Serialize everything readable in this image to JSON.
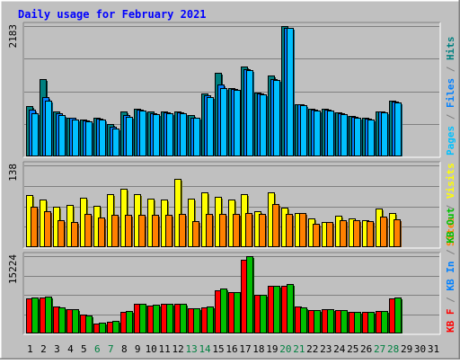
{
  "chart_data": {
    "type": "bar",
    "title": "Daily usage for February 2021",
    "categories": [
      "1",
      "2",
      "3",
      "4",
      "5",
      "6",
      "7",
      "8",
      "9",
      "10",
      "11",
      "12",
      "13",
      "14",
      "15",
      "16",
      "17",
      "18",
      "19",
      "20",
      "21",
      "22",
      "23",
      "24",
      "25",
      "26",
      "27",
      "28",
      "29",
      "30",
      "31"
    ],
    "weekend_days": [
      "6",
      "7",
      "13",
      "14",
      "20",
      "21",
      "27",
      "28"
    ],
    "panels": [
      {
        "id": "hits_files_pages",
        "ymax_label": "2183",
        "ylim": [
          0,
          2183
        ],
        "grid": true,
        "series": [
          {
            "name": "Hits",
            "color": "#008080",
            "values": [
              850,
              1300,
              750,
              650,
              620,
              650,
              540,
              750,
              800,
              750,
              750,
              760,
              690,
              1050,
              1400,
              1150,
              1500,
              1070,
              1350,
              2180,
              880,
              800,
              800,
              740,
              680,
              650,
              760,
              930,
              null,
              null,
              null
            ]
          },
          {
            "name": "Files",
            "color": "#0080ff",
            "values": [
              790,
              1000,
              720,
              640,
              600,
              630,
              500,
              700,
              780,
              720,
              740,
              740,
              650,
              1030,
              1200,
              1130,
              1460,
              1050,
              1300,
              2150,
              870,
              780,
              780,
              720,
              660,
              630,
              750,
              920,
              null,
              null,
              null
            ]
          },
          {
            "name": "Pages",
            "color": "#00c0ff",
            "values": [
              720,
              940,
              700,
              610,
              590,
              610,
              470,
              660,
              770,
              710,
              720,
              730,
              640,
              1000,
              1150,
              1120,
              1450,
              1040,
              1280,
              2150,
              860,
              770,
              770,
              710,
              650,
              620,
              740,
              900,
              null,
              null,
              null
            ]
          }
        ],
        "axis_labels": [
          {
            "text": "Pages",
            "color": "#00c0ff"
          },
          {
            "text": " / ",
            "color": "#808080"
          },
          {
            "text": "Files",
            "color": "#0080ff"
          },
          {
            "text": " / ",
            "color": "#808080"
          },
          {
            "text": "Hits",
            "color": "#008080"
          }
        ]
      },
      {
        "id": "visits_sites",
        "ymax_label": "138",
        "ylim": [
          0,
          138
        ],
        "grid": true,
        "series": [
          {
            "name": "Visits",
            "color": "#ffff00",
            "values": [
              88,
              80,
              68,
              72,
              83,
              70,
              90,
              98,
              90,
              82,
              80,
              115,
              82,
              92,
              85,
              80,
              90,
              60,
              92,
              66,
              57,
              48,
              42,
              53,
              48,
              45,
              65,
              58,
              null,
              null,
              null
            ]
          },
          {
            "name": "Sites",
            "color": "#ff8000",
            "values": [
              68,
              60,
              46,
              42,
              56,
              50,
              54,
              54,
              54,
              54,
              54,
              56,
              44,
              56,
              56,
              56,
              58,
              56,
              73,
              56,
              57,
              40,
              42,
              45,
              45,
              44,
              52,
              47,
              null,
              null,
              null
            ]
          }
        ],
        "axis_labels": [
          {
            "text": "Sites",
            "color": "#ff8000"
          },
          {
            "text": " / ",
            "color": "#808080"
          },
          {
            "text": "Visits",
            "color": "#ffff00"
          }
        ]
      },
      {
        "id": "kb",
        "ymax_label": "15224",
        "ylim": [
          0,
          15224
        ],
        "grid": true,
        "series": [
          {
            "name": "KB F",
            "color": "#ff0000",
            "values": [
              6900,
              7100,
              5250,
              4800,
              3800,
              2000,
              2300,
              4300,
              5900,
              5500,
              5900,
              5900,
              4900,
              5100,
              8500,
              8200,
              14600,
              7600,
              9300,
              9300,
              5300,
              4600,
              4700,
              4600,
              4300,
              4300,
              4400,
              6900,
              null,
              null,
              null
            ]
          },
          {
            "name": "KB In",
            "color": "#0080ff",
            "values": [
              0,
              0,
              0,
              0,
              0,
              0,
              0,
              0,
              0,
              0,
              0,
              0,
              0,
              0,
              0,
              0,
              0,
              0,
              0,
              0,
              0,
              0,
              0,
              0,
              0,
              0,
              0,
              0,
              null,
              null,
              null
            ]
          },
          {
            "name": "KB Out",
            "color": "#00c000",
            "values": [
              7000,
              7300,
              5200,
              4700,
              3500,
              2200,
              2500,
              4500,
              5900,
              5600,
              5900,
              5800,
              4900,
              5300,
              8800,
              8200,
              15224,
              7700,
              9400,
              9800,
              5200,
              4600,
              4800,
              4600,
              4200,
              4300,
              4500,
              7000,
              null,
              null,
              null
            ]
          }
        ],
        "axis_labels": [
          {
            "text": "KB F",
            "color": "#ff0000"
          },
          {
            "text": " / ",
            "color": "#808080"
          },
          {
            "text": "KB In",
            "color": "#0080ff"
          },
          {
            "text": " / ",
            "color": "#808080"
          },
          {
            "text": "KB Out",
            "color": "#00c000"
          }
        ]
      }
    ]
  }
}
